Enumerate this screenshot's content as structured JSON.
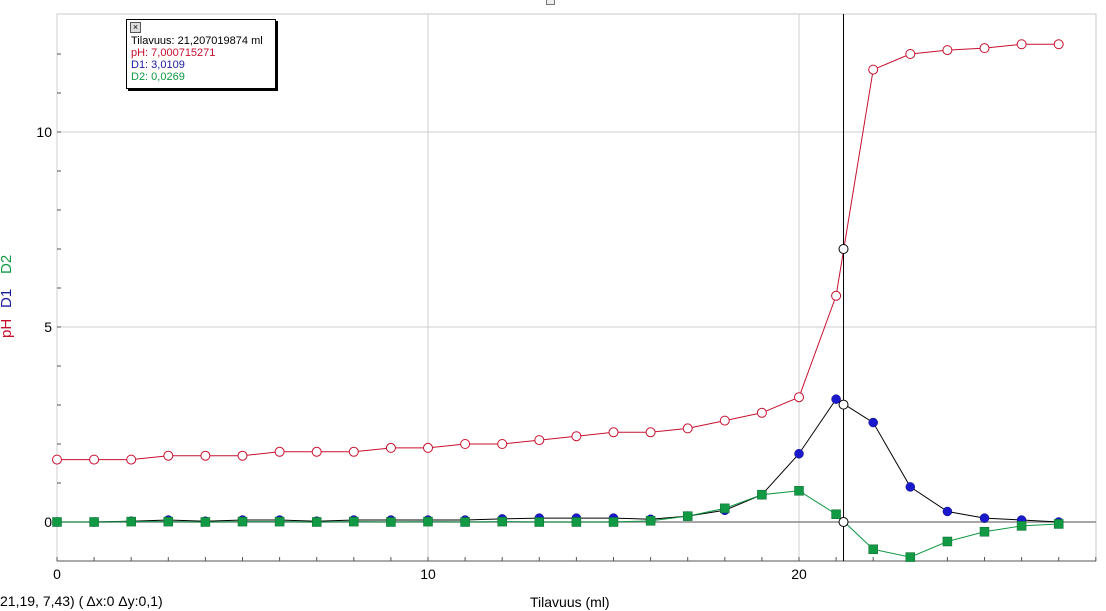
{
  "chart_data": {
    "type": "line",
    "xlabel": "Tilavuus (ml)",
    "xlim": [
      0,
      28
    ],
    "ylim": [
      -1,
      13
    ],
    "x_ticks": [
      0,
      10,
      20
    ],
    "y_ticks": [
      0,
      5,
      10
    ],
    "y_labels": [
      {
        "text": "pH",
        "color": "#c8102e"
      },
      {
        "text": "D1",
        "color": "#1a1aa0"
      },
      {
        "text": "D2",
        "color": "#119944"
      }
    ],
    "grid": true,
    "cursor_x": 21.2,
    "series": [
      {
        "name": "pH",
        "color": "#c8102e",
        "marker": "open-circle",
        "x": [
          0,
          1,
          2,
          3,
          4,
          5,
          6,
          7,
          8,
          9,
          10,
          11,
          12,
          13,
          14,
          15,
          16,
          17,
          18,
          19,
          20,
          21,
          22,
          23,
          24,
          25,
          26,
          27
        ],
        "y": [
          1.6,
          1.6,
          1.6,
          1.7,
          1.7,
          1.7,
          1.8,
          1.8,
          1.8,
          1.9,
          1.9,
          2.0,
          2.0,
          2.1,
          2.2,
          2.3,
          2.3,
          2.4,
          2.6,
          2.8,
          3.2,
          5.8,
          11.6,
          12.0,
          12.1,
          12.15,
          12.25,
          12.25
        ]
      },
      {
        "name": "D1",
        "color": "#0a0aa0",
        "marker": "filled-circle",
        "x": [
          0,
          1,
          2,
          3,
          4,
          5,
          6,
          7,
          8,
          9,
          10,
          11,
          12,
          13,
          14,
          15,
          16,
          17,
          18,
          19,
          20,
          21,
          22,
          23,
          24,
          25,
          26,
          27
        ],
        "y": [
          0,
          0,
          0.02,
          0.05,
          0.02,
          0.05,
          0.05,
          0.02,
          0.05,
          0.05,
          0.05,
          0.05,
          0.08,
          0.1,
          0.1,
          0.1,
          0.07,
          0.15,
          0.3,
          0.7,
          1.75,
          3.15,
          2.55,
          0.9,
          0.27,
          0.1,
          0.05,
          0.0
        ]
      },
      {
        "name": "D2",
        "color": "#119944",
        "marker": "filled-square",
        "x": [
          0,
          1,
          2,
          3,
          4,
          5,
          6,
          7,
          8,
          9,
          10,
          11,
          12,
          13,
          14,
          15,
          16,
          17,
          18,
          19,
          20,
          21,
          22,
          23,
          24,
          25,
          26,
          27
        ],
        "y": [
          0,
          0,
          0.01,
          0.01,
          0,
          0.01,
          0.01,
          0,
          0.01,
          0,
          0.01,
          0,
          0.01,
          0,
          0,
          0,
          0.03,
          0.15,
          0.35,
          0.7,
          0.8,
          0.2,
          -0.7,
          -0.9,
          -0.5,
          -0.25,
          -0.1,
          -0.05
        ]
      }
    ]
  },
  "readout": {
    "line1": "Tilavuus: 21,207019874 ml",
    "line2": "pH: 7,000715271",
    "line3": "D1: 3,0109",
    "line4": "D2: 0,0269",
    "colors": [
      "#000000",
      "#c8102e",
      "#1a1aa0",
      "#119944"
    ]
  },
  "status_text": "21,19, 7,43) ( Δx:0 Δy:0,1)"
}
